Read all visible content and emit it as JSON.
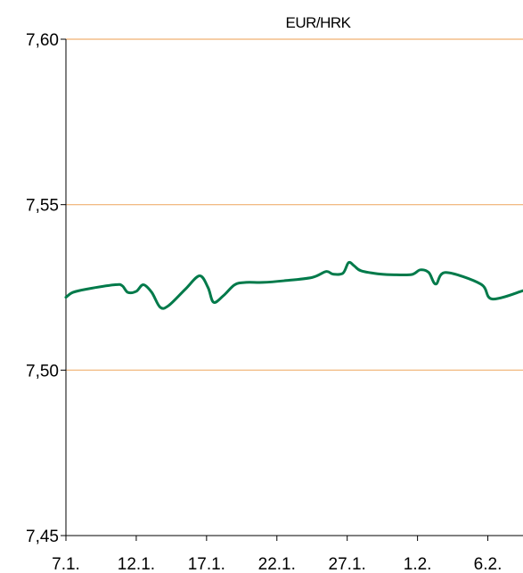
{
  "chart_data": {
    "type": "line",
    "title": "EUR/HRK",
    "xlabel": "",
    "ylabel": "",
    "ylim": [
      7.45,
      7.6
    ],
    "y_ticks": [
      "7,45",
      "7,50",
      "7,55",
      "7,60"
    ],
    "y_tick_values": [
      7.45,
      7.5,
      7.55,
      7.6
    ],
    "x_tick_labels": [
      "7.1.",
      "12.1.",
      "17.1.",
      "22.1.",
      "27.1.",
      "1.2.",
      "6.2."
    ],
    "x_tick_values": [
      0,
      5,
      10,
      15,
      20,
      25,
      30
    ],
    "xlim": [
      0,
      32.5
    ],
    "grid": true,
    "legend": "none",
    "line_color": "#007a4a",
    "grid_color": "#f0b070",
    "series": [
      {
        "x": [
          0,
          0.5,
          1.5,
          3.5,
          4,
          4.4,
          5,
          5.5,
          6.1,
          6.7,
          7.3,
          8.5,
          9.5,
          10.1,
          10.5,
          11.2,
          12,
          12.8,
          14,
          15.5,
          17.5,
          18.5,
          19,
          19.7,
          20.1,
          20.5,
          21,
          22.4,
          23.5,
          24.6,
          25.2,
          25.8,
          26.3,
          27,
          29.5,
          30.3,
          32.5
        ],
        "values": [
          7.522,
          7.5235,
          7.5245,
          7.5258,
          7.5255,
          7.5235,
          7.5238,
          7.5258,
          7.5235,
          7.519,
          7.5195,
          7.5245,
          7.5285,
          7.525,
          7.5205,
          7.5225,
          7.5258,
          7.5265,
          7.5265,
          7.527,
          7.528,
          7.5298,
          7.529,
          7.5293,
          7.5325,
          7.5315,
          7.53,
          7.529,
          7.5288,
          7.5289,
          7.5303,
          7.5295,
          7.526,
          7.5295,
          7.526,
          7.5215,
          7.524
        ]
      }
    ]
  }
}
